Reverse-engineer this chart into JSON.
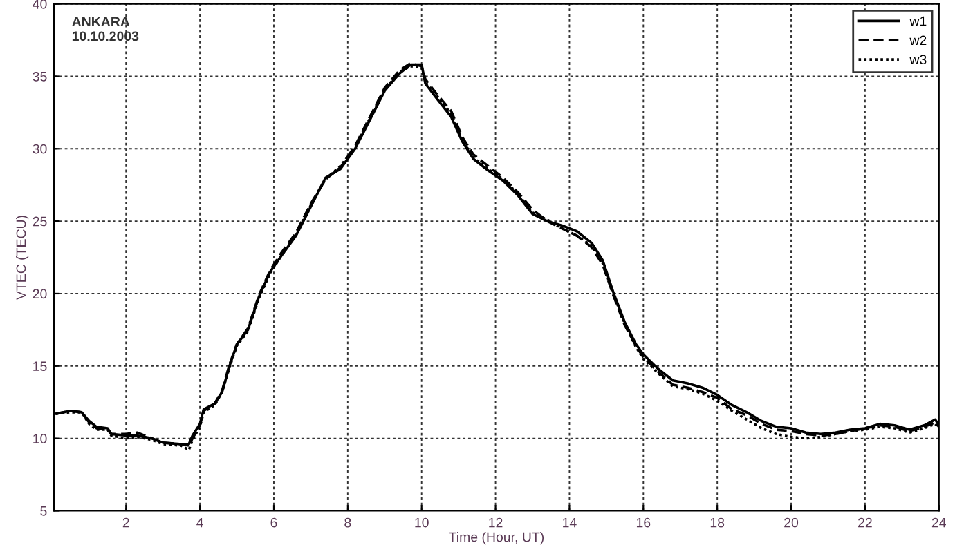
{
  "chart_data": {
    "type": "line",
    "xlabel": "Time (Hour, UT)",
    "ylabel": "VTEC (TECU)",
    "annotations": [
      "ANKARA\n10.10.2003"
    ],
    "x": [
      0.1,
      0.5,
      0.8,
      1.0,
      1.2,
      1.5,
      1.6,
      2.0,
      2.3,
      2.7,
      3.0,
      3.5,
      3.7,
      3.8,
      4.0,
      4.1,
      4.4,
      4.6,
      4.8,
      5.0,
      5.3,
      5.6,
      5.9,
      6.2,
      6.6,
      7.0,
      7.4,
      7.8,
      8.2,
      8.6,
      9.0,
      9.4,
      9.7,
      10.0,
      10.1,
      10.4,
      10.8,
      11.1,
      11.4,
      11.8,
      12.2,
      12.6,
      13.0,
      13.4,
      13.8,
      14.2,
      14.6,
      14.9,
      15.2,
      15.5,
      15.8,
      16.0,
      16.4,
      16.8,
      17.2,
      17.6,
      18.0,
      18.4,
      18.8,
      19.2,
      19.6,
      20.0,
      20.4,
      20.8,
      21.2,
      21.6,
      22.0,
      22.4,
      22.8,
      23.2,
      23.6,
      23.9,
      24.0
    ],
    "series": [
      {
        "name": "w1",
        "color": "#000000",
        "line_style": "solid",
        "values": [
          11.7,
          11.9,
          11.8,
          11.2,
          10.8,
          10.7,
          10.3,
          10.2,
          10.2,
          10.0,
          9.7,
          9.6,
          9.6,
          10.2,
          11.0,
          12.0,
          12.4,
          13.2,
          15.0,
          16.5,
          17.5,
          19.8,
          21.5,
          22.6,
          24.0,
          26.0,
          28.0,
          28.6,
          30.0,
          32.0,
          34.0,
          35.2,
          35.8,
          35.8,
          34.5,
          33.5,
          32.2,
          30.5,
          29.3,
          28.5,
          27.8,
          26.8,
          25.5,
          25.0,
          24.7,
          24.3,
          23.5,
          22.3,
          20.0,
          18.0,
          16.5,
          15.8,
          14.8,
          14.0,
          13.8,
          13.5,
          13.0,
          12.3,
          11.8,
          11.2,
          10.8,
          10.7,
          10.4,
          10.3,
          10.4,
          10.6,
          10.7,
          11.0,
          10.9,
          10.6,
          10.9,
          11.3,
          10.9
        ]
      },
      {
        "name": "w2",
        "color": "#000000",
        "line_style": "dashed",
        "values": [
          11.7,
          11.9,
          11.8,
          11.1,
          10.7,
          10.6,
          10.3,
          10.3,
          10.4,
          10.0,
          9.7,
          9.6,
          9.5,
          10.0,
          10.9,
          11.9,
          12.4,
          13.3,
          15.1,
          16.5,
          17.6,
          19.9,
          21.6,
          22.8,
          24.2,
          26.2,
          27.9,
          28.7,
          30.2,
          32.2,
          34.2,
          35.4,
          35.9,
          35.7,
          34.8,
          33.8,
          32.6,
          30.8,
          29.6,
          28.8,
          28.0,
          27.0,
          25.8,
          25.0,
          24.5,
          24.0,
          23.2,
          22.0,
          19.8,
          17.8,
          16.4,
          15.6,
          14.6,
          13.7,
          13.5,
          13.2,
          12.8,
          12.0,
          11.6,
          11.0,
          10.6,
          10.5,
          10.3,
          10.2,
          10.3,
          10.5,
          10.7,
          10.9,
          10.8,
          10.5,
          10.8,
          11.1,
          10.8
        ]
      },
      {
        "name": "w3",
        "color": "#000000",
        "line_style": "dotted",
        "values": [
          11.7,
          11.8,
          11.8,
          11.0,
          10.6,
          10.6,
          10.2,
          10.0,
          10.1,
          9.9,
          9.6,
          9.5,
          9.2,
          9.9,
          10.8,
          11.8,
          12.3,
          13.2,
          14.9,
          16.4,
          17.4,
          19.7,
          21.4,
          22.6,
          24.1,
          26.1,
          27.9,
          28.8,
          30.1,
          32.1,
          34.1,
          35.3,
          35.7,
          35.6,
          34.6,
          33.7,
          32.4,
          30.6,
          29.4,
          28.6,
          27.9,
          26.9,
          25.6,
          25.1,
          24.5,
          24.0,
          23.3,
          22.1,
          19.9,
          17.9,
          16.3,
          15.5,
          14.5,
          13.6,
          13.4,
          13.1,
          12.6,
          11.9,
          11.3,
          10.7,
          10.3,
          10.1,
          10.0,
          10.1,
          10.3,
          10.5,
          10.6,
          10.8,
          10.7,
          10.4,
          10.7,
          11.0,
          10.7
        ]
      }
    ],
    "xlim": [
      0.05,
      24
    ],
    "xticks": [
      2,
      4,
      6,
      8,
      10,
      12,
      14,
      16,
      18,
      20,
      22,
      24
    ],
    "ylim": [
      5,
      40
    ],
    "yticks": [
      5,
      10,
      15,
      20,
      25,
      30,
      35,
      40
    ],
    "grid": true,
    "legend": "top right",
    "marker": "none"
  }
}
